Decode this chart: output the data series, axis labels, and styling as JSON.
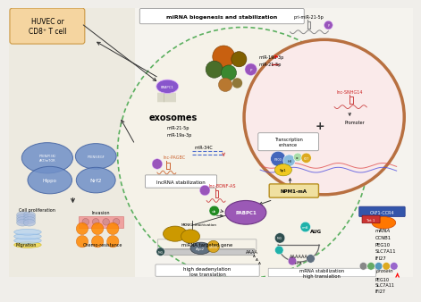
{
  "bg_color": "#f0eeea",
  "title": "miRNA biogenesis and stabilization",
  "huvec_text": "HUVEC or\nCD8⁺ T cell",
  "right_labels_mrna": [
    "CCNB1",
    "PEG10",
    "SLC7A11",
    "IFI27"
  ],
  "right_labels_protein": [
    "PEG10",
    "SLC7A11",
    "IFI27"
  ],
  "npm1_label": "NPM1-mA",
  "pabpc1_label": "PABPC1",
  "exosomes_label": "exosomes",
  "exo_sub1": "miR-21-5p",
  "exo_sub2": "miR-19a-3p",
  "protein_colors": [
    "#aaaaaa",
    "#90ee90",
    "#87ceeb",
    "#daa520",
    "#9370db"
  ],
  "protein_labels": [
    "",
    "PEG10",
    "SLC7A11",
    "IFI27"
  ]
}
